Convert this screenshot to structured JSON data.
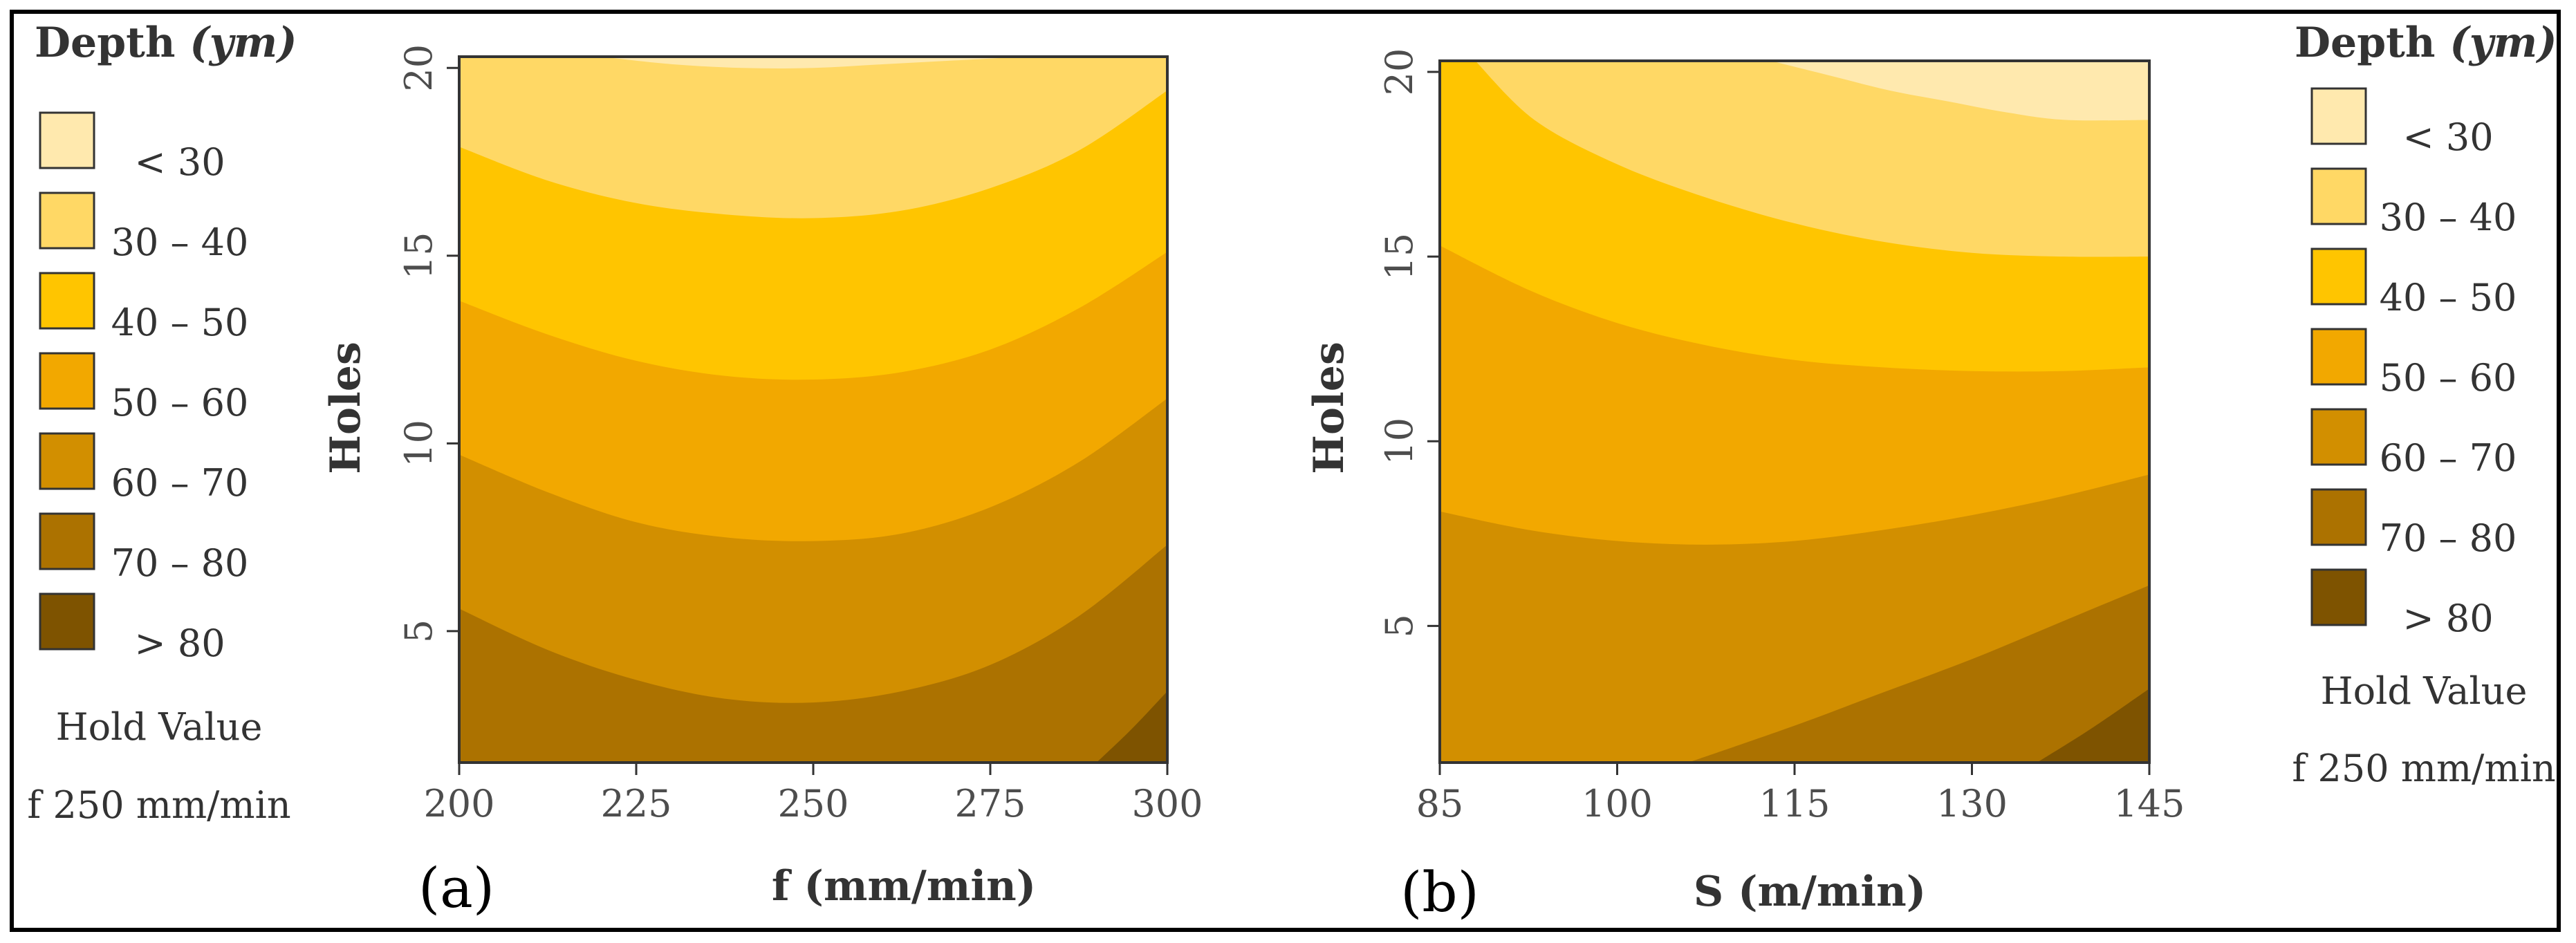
{
  "colors": {
    "levels": [
      "#FFE9AE",
      "#FFD865",
      "#FFC500",
      "#F2A800",
      "#D28F00",
      "#AC7200",
      "#7E5300"
    ],
    "frame": "#000000",
    "axis": "#333333"
  },
  "legend": {
    "title": "Depth",
    "unit": "(ym)",
    "items": [
      {
        "label": "< 30",
        "color": "#FFE9AE"
      },
      {
        "label": "30 – 40",
        "color": "#FFD865"
      },
      {
        "label": "40 – 50",
        "color": "#FFC500"
      },
      {
        "label": "50 – 60",
        "color": "#F2A800"
      },
      {
        "label": "60 – 70",
        "color": "#D28F00"
      },
      {
        "label": "70 – 80",
        "color": "#AC7200"
      },
      {
        "label": "> 80",
        "color": "#7E5300"
      }
    ],
    "hold_title": "Hold Value",
    "hold_value": "f 250 mm/min"
  },
  "chart_data": [
    {
      "type": "contour",
      "panel_label": "(a)",
      "xlabel": "f (mm/min)",
      "ylabel": "Holes",
      "xlim": [
        200,
        300
      ],
      "ylim": [
        1.5,
        20.3
      ],
      "xticks": [
        200,
        225,
        250,
        275,
        300
      ],
      "yticks": [
        5,
        10,
        15,
        20
      ],
      "levels": [
        "< 30",
        "30 – 40",
        "40 – 50",
        "50 – 60",
        "60 – 70",
        "70 – 80",
        "> 80"
      ],
      "boundaries": [
        {
          "between": "< 30 | 30 – 40",
          "x": [
            220,
            230,
            240,
            250,
            260,
            270,
            280
          ],
          "y": [
            20.3,
            20.1,
            20.0,
            20.0,
            20.1,
            20.2,
            20.3
          ]
        },
        {
          "between": "30 – 40 | 40 – 50",
          "x": [
            200,
            212.5,
            225,
            237.5,
            250,
            262.5,
            275,
            287.5,
            300
          ],
          "y": [
            17.9,
            17.0,
            16.4,
            16.1,
            16.0,
            16.2,
            16.8,
            17.8,
            19.4
          ]
        },
        {
          "between": "40 – 50 | 50 – 60",
          "x": [
            200,
            212.5,
            225,
            237.5,
            250,
            262.5,
            275,
            287.5,
            300
          ],
          "y": [
            13.8,
            12.9,
            12.2,
            11.8,
            11.7,
            11.9,
            12.5,
            13.6,
            15.1
          ]
        },
        {
          "between": "50 – 60 | 60 – 70",
          "x": [
            200,
            212.5,
            225,
            237.5,
            250,
            262.5,
            275,
            287.5,
            300
          ],
          "y": [
            9.7,
            8.7,
            7.9,
            7.5,
            7.4,
            7.6,
            8.3,
            9.5,
            11.2
          ]
        },
        {
          "between": "60 – 70 | 70 – 80",
          "x": [
            200,
            212.5,
            225,
            237.5,
            250,
            262.5,
            275,
            287.5,
            300
          ],
          "y": [
            5.6,
            4.5,
            3.7,
            3.2,
            3.1,
            3.4,
            4.1,
            5.4,
            7.3
          ]
        },
        {
          "between": "70 – 80 | > 80",
          "x": [
            290,
            295,
            300
          ],
          "y": [
            1.5,
            2.4,
            3.4
          ]
        }
      ]
    },
    {
      "type": "contour",
      "panel_label": "(b)",
      "xlabel": "S (m/min)",
      "ylabel": "Holes",
      "xlim": [
        85,
        145
      ],
      "ylim": [
        1.3,
        20.3
      ],
      "xticks": [
        85,
        100,
        115,
        130,
        145
      ],
      "yticks": [
        5,
        10,
        15,
        20
      ],
      "levels": [
        "< 30",
        "30 – 40",
        "40 – 50",
        "50 – 60",
        "60 – 70",
        "70 – 80",
        "> 80"
      ],
      "boundaries": [
        {
          "between": "< 30 | 30 – 40",
          "x": [
            113,
            118,
            123,
            128,
            133,
            138,
            145
          ],
          "y": [
            20.3,
            19.9,
            19.5,
            19.2,
            18.9,
            18.7,
            18.7
          ]
        },
        {
          "between": "30 – 40 | 40 – 50",
          "x": [
            88,
            93,
            100,
            107.5,
            115,
            122.5,
            130,
            137.5,
            145
          ],
          "y": [
            20.3,
            18.7,
            17.5,
            16.6,
            15.9,
            15.4,
            15.1,
            15.0,
            15.0
          ]
        },
        {
          "between": "40 – 50 | 50 – 60",
          "x": [
            85,
            92.5,
            100,
            107.5,
            115,
            122.5,
            130,
            137.5,
            145
          ],
          "y": [
            15.3,
            14.1,
            13.2,
            12.6,
            12.2,
            12.0,
            11.9,
            11.9,
            12.0
          ]
        },
        {
          "between": "50 – 60 | 60 – 70",
          "x": [
            85,
            92.5,
            100,
            107.5,
            115,
            122.5,
            130,
            137.5,
            145
          ],
          "y": [
            8.1,
            7.6,
            7.3,
            7.2,
            7.3,
            7.6,
            8.0,
            8.5,
            9.1
          ]
        },
        {
          "between": "60 – 70 | 70 – 80",
          "x": [
            106,
            115,
            122.5,
            130,
            137.5,
            145
          ],
          "y": [
            1.3,
            2.3,
            3.2,
            4.1,
            5.1,
            6.1
          ]
        },
        {
          "between": "70 – 80 | > 80",
          "x": [
            135.5,
            140,
            145
          ],
          "y": [
            1.3,
            2.2,
            3.3
          ]
        }
      ]
    }
  ]
}
